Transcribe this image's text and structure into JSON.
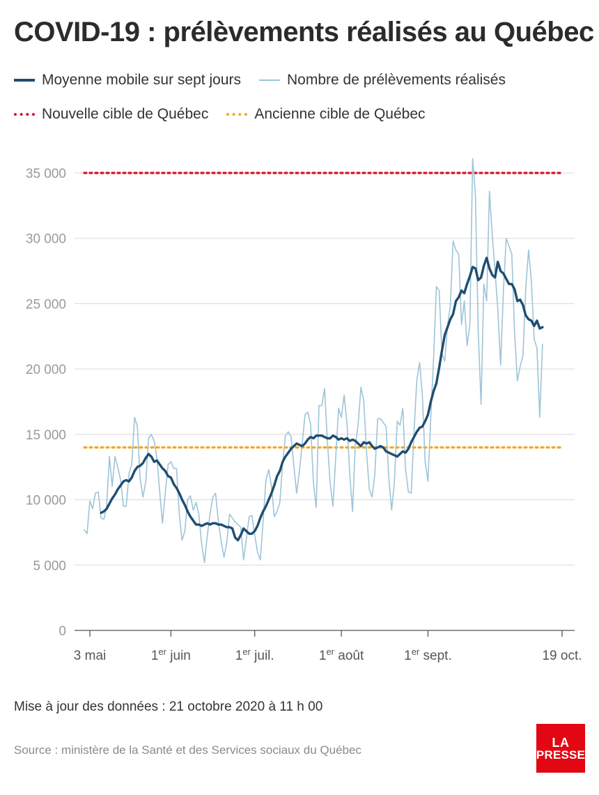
{
  "title": "COVID-19 : prélèvements réalisés au Québec",
  "legend": {
    "moving_average": "Moyenne mobile sur sept jours",
    "daily": "Nombre de prélèvements réalisés",
    "new_target": "Nouvelle cible de Québec",
    "old_target": "Ancienne cible de Québec"
  },
  "footer": {
    "update": "Mise à jour des données : 21 octobre 2020 à 11 h 00",
    "source": "Source : ministère de la Santé et des Services sociaux du Québec"
  },
  "logo": {
    "line1": "LA",
    "line2": "PRESSE"
  },
  "colors": {
    "moving_average": "#1f4e71",
    "daily": "#9ec4d8",
    "new_target": "#d4142a",
    "old_target": "#f4a81d",
    "grid": "#d9d9d9",
    "tick_label": "#9a9a9a",
    "brand": "#e30613"
  },
  "chart_data": {
    "type": "line",
    "x_start": "2020-05-01",
    "x_end": "2020-10-19",
    "ylim": [
      0,
      35000
    ],
    "yticks": [
      0,
      5000,
      10000,
      15000,
      20000,
      25000,
      30000,
      35000
    ],
    "ytick_labels": [
      "0",
      "5 000",
      "10 000",
      "15 000",
      "20 000",
      "25 000",
      "30 000",
      "35 000"
    ],
    "xticks": [
      {
        "date": "2020-05-03",
        "label": "3 mai",
        "sup": ""
      },
      {
        "date": "2020-06-01",
        "label": "1",
        "sup": "er",
        "rest": " juin"
      },
      {
        "date": "2020-07-01",
        "label": "1",
        "sup": "er",
        "rest": " juil."
      },
      {
        "date": "2020-08-01",
        "label": "1",
        "sup": "er",
        "rest": " août"
      },
      {
        "date": "2020-09-01",
        "label": "1",
        "sup": "er",
        "rest": " sept."
      },
      {
        "date": "2020-10-19",
        "label": "19 oct.",
        "sup": ""
      }
    ],
    "grid": true,
    "targets": [
      {
        "series": "new_target",
        "value": 35000
      },
      {
        "series": "old_target",
        "value": 14000
      }
    ],
    "series": [
      {
        "key": "daily",
        "name": "Nombre de prélèvements réalisés",
        "start": "2020-05-01",
        "values": [
          7700,
          7400,
          9900,
          9300,
          10500,
          10600,
          8600,
          8500,
          9500,
          13300,
          11000,
          13300,
          12500,
          11500,
          9500,
          9500,
          12000,
          12700,
          16300,
          15600,
          11600,
          10200,
          11400,
          14700,
          15000,
          14500,
          13200,
          10600,
          8200,
          10500,
          12700,
          12900,
          12400,
          12400,
          8900,
          6900,
          7600,
          10000,
          10300,
          9200,
          9800,
          8900,
          6600,
          5200,
          7200,
          8900,
          10200,
          10500,
          8300,
          6800,
          5600,
          6700,
          8900,
          8600,
          8300,
          8100,
          7900,
          5400,
          7000,
          8700,
          8800,
          7300,
          6000,
          5400,
          8300,
          11500,
          12300,
          11000,
          8700,
          9100,
          9800,
          12800,
          14900,
          15200,
          14800,
          12600,
          10500,
          12200,
          14300,
          16500,
          16700,
          15800,
          11300,
          9400,
          17200,
          17200,
          18500,
          14500,
          11300,
          9500,
          13300,
          17000,
          16300,
          18000,
          15900,
          12000,
          9100,
          14200,
          15700,
          18600,
          17600,
          13700,
          10800,
          10200,
          12000,
          16200,
          16200,
          15900,
          15600,
          11600,
          9200,
          11400,
          16000,
          15700,
          17000,
          12300,
          10600,
          10500,
          15200,
          19100,
          20500,
          18000,
          12900,
          11400,
          16300,
          20800,
          26300,
          26000,
          21200,
          20600,
          23300,
          24800,
          29800,
          29100,
          28800,
          23400,
          25200,
          21800,
          23400,
          36100,
          33300,
          22900,
          17300,
          26500,
          25200,
          33600,
          30300,
          27500,
          24600,
          20300,
          26000,
          30000,
          29400,
          28800,
          22800,
          19100,
          20200,
          21000,
          26200,
          29100,
          26700,
          22300,
          21600,
          16300,
          21900
        ]
      },
      {
        "key": "moving_average",
        "name": "Moyenne mobile sur sept jours",
        "start": "2020-05-07",
        "values": [
          9000,
          9100,
          9300,
          9700,
          10100,
          10400,
          10800,
          11100,
          11400,
          11500,
          11400,
          11700,
          12200,
          12500,
          12600,
          12800,
          13200,
          13500,
          13300,
          12900,
          13000,
          12700,
          12400,
          12200,
          11800,
          11700,
          11200,
          10900,
          10500,
          10000,
          9600,
          9100,
          8700,
          8400,
          8100,
          8100,
          8000,
          8100,
          8200,
          8100,
          8200,
          8200,
          8100,
          8100,
          8000,
          7900,
          7900,
          7800,
          7100,
          6900,
          7300,
          7800,
          7600,
          7400,
          7400,
          7600,
          8000,
          8600,
          9100,
          9500,
          10000,
          10500,
          11100,
          11800,
          12200,
          12900,
          13300,
          13600,
          13900,
          14100,
          14300,
          14200,
          14100,
          14300,
          14600,
          14800,
          14700,
          14900,
          14900,
          14900,
          14800,
          14700,
          14700,
          14900,
          14800,
          14600,
          14700,
          14600,
          14700,
          14500,
          14600,
          14500,
          14300,
          14100,
          14400,
          14300,
          14400,
          14100,
          13900,
          14000,
          14100,
          14000,
          13700,
          13600,
          13500,
          13400,
          13300,
          13500,
          13700,
          13600,
          13900,
          14400,
          14800,
          15200,
          15500,
          15600,
          16000,
          16500,
          17500,
          18300,
          18900,
          20100,
          21400,
          22600,
          23200,
          23800,
          24200,
          25200,
          25500,
          26000,
          25800,
          26500,
          27100,
          27800,
          27700,
          26800,
          27000,
          27900,
          28500,
          27700,
          27200,
          27000,
          28200,
          27500,
          27300,
          26900,
          26500,
          26500,
          26100,
          25200,
          25300,
          24900,
          24100,
          23800,
          23700,
          23300,
          23700,
          23100,
          23200
        ]
      }
    ]
  }
}
